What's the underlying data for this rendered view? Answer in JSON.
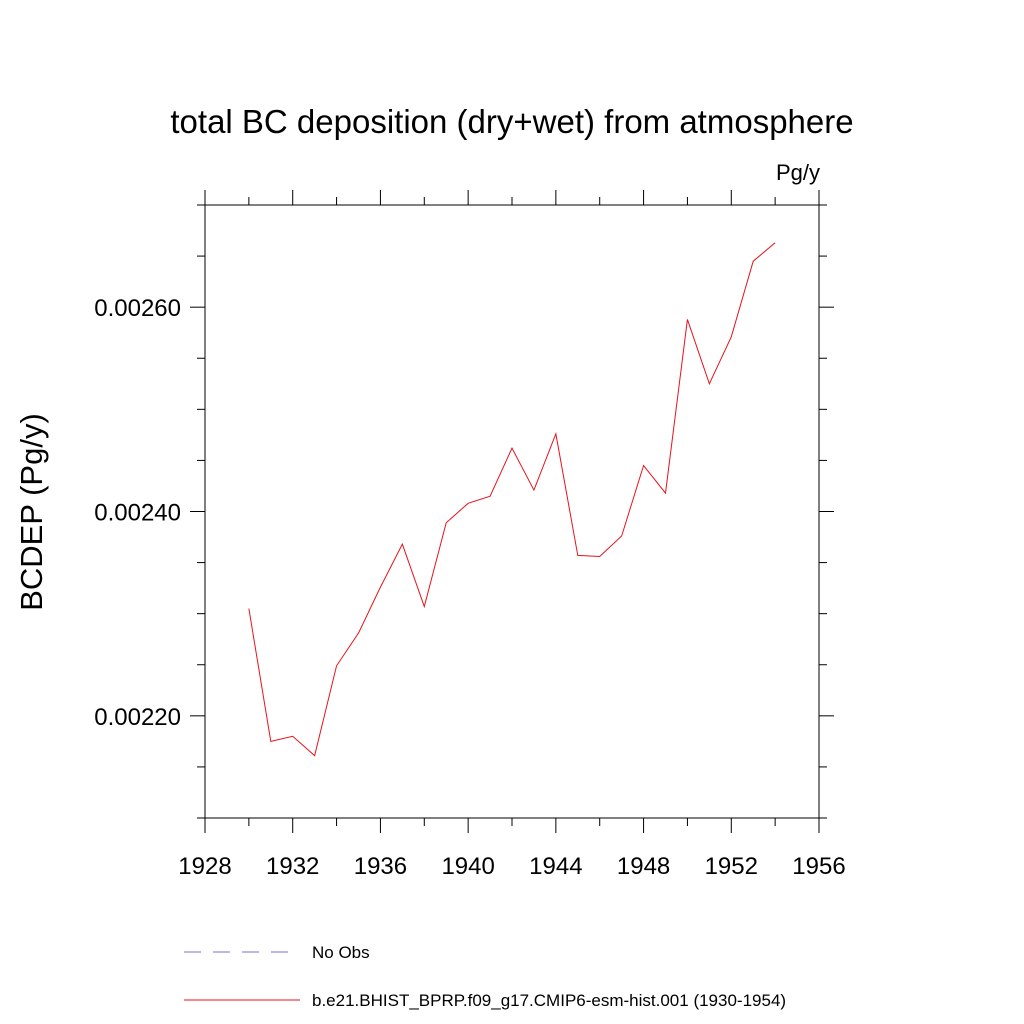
{
  "chart_data": {
    "type": "line",
    "title": "total BC deposition (dry+wet) from atmosphere",
    "units": "Pg/y",
    "ylabel": "BCDEP  (Pg/y)",
    "xlabel": "",
    "xlim": [
      1928,
      1956
    ],
    "ylim": [
      0.0021,
      0.0027
    ],
    "x_ticks": [
      1928,
      1932,
      1936,
      1940,
      1944,
      1948,
      1952,
      1956
    ],
    "x_tick_labels": [
      "1928",
      "1932",
      "1936",
      "1940",
      "1944",
      "1948",
      "1952",
      "1956"
    ],
    "x_minor_ticks": [
      1930,
      1934,
      1938,
      1942,
      1946,
      1950,
      1954
    ],
    "y_ticks": [
      0.0022,
      0.0024,
      0.0026
    ],
    "y_tick_labels": [
      "0.00220",
      "0.00240",
      "0.00260"
    ],
    "y_minor_ticks": [
      0.0021,
      0.00215,
      0.00225,
      0.0023,
      0.00235,
      0.00245,
      0.0025,
      0.00255,
      0.00265,
      0.0027
    ],
    "grid": false,
    "legend_position": "bottom",
    "series": [
      {
        "name": "No Obs",
        "color": "#7b6fd6",
        "dash": "dashed",
        "x": [],
        "y": []
      },
      {
        "name": "b.e21.BHIST_BPRP.f09_g17.CMIP6-esm-hist.001 (1930-1954)",
        "color": "#e8131b",
        "dash": "solid",
        "x": [
          1930,
          1931,
          1932,
          1933,
          1934,
          1935,
          1936,
          1937,
          1938,
          1939,
          1940,
          1941,
          1942,
          1943,
          1944,
          1945,
          1946,
          1947,
          1948,
          1949,
          1950,
          1951,
          1952,
          1953,
          1954
        ],
        "y": [
          0.002305,
          0.002175,
          0.00218,
          0.002161,
          0.002249,
          0.002281,
          0.002326,
          0.002368,
          0.002307,
          0.002389,
          0.002408,
          0.002415,
          0.002462,
          0.002421,
          0.002476,
          0.002357,
          0.002356,
          0.002376,
          0.002445,
          0.002418,
          0.002588,
          0.002525,
          0.002571,
          0.002645,
          0.002663
        ]
      }
    ]
  }
}
